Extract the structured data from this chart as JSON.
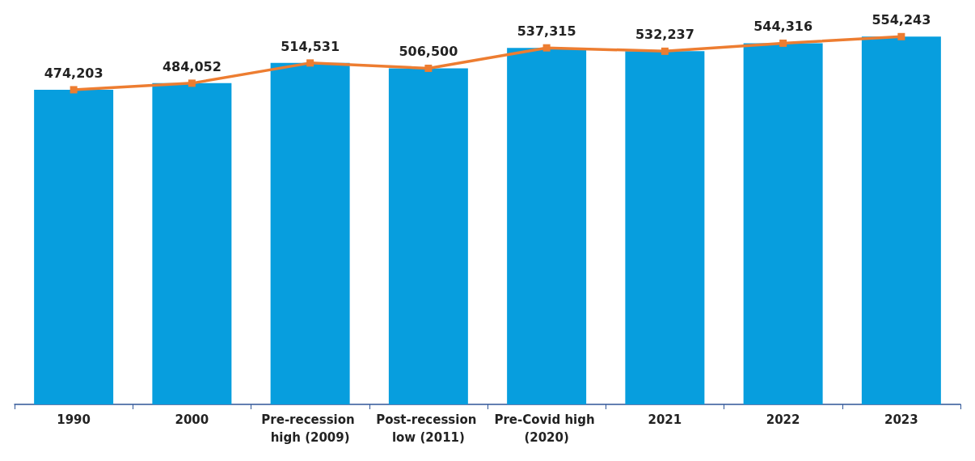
{
  "chart_data": {
    "type": "bar",
    "categories": [
      "1990",
      "2000",
      "Pre-recession high (2009)",
      "Post-recession low (2011)",
      "Pre-Covid high (2020)",
      "2021",
      "2022",
      "2023"
    ],
    "series": [
      {
        "color": "#079ede",
        "values": [
          474203,
          484052,
          514531,
          506500,
          537315,
          532237,
          544316,
          554243
        ]
      },
      {
        "type": "line",
        "color": "#ed7d31",
        "values": [
          474203,
          484052,
          514531,
          506500,
          537315,
          532237,
          544316,
          554243
        ],
        "value_labels": [
          "474,203",
          "484,052",
          "514,531",
          "506,500",
          "537,315",
          "532,237",
          "544,316",
          "554,243"
        ]
      }
    ],
    "marker": "square",
    "line_style": "solid"
  }
}
